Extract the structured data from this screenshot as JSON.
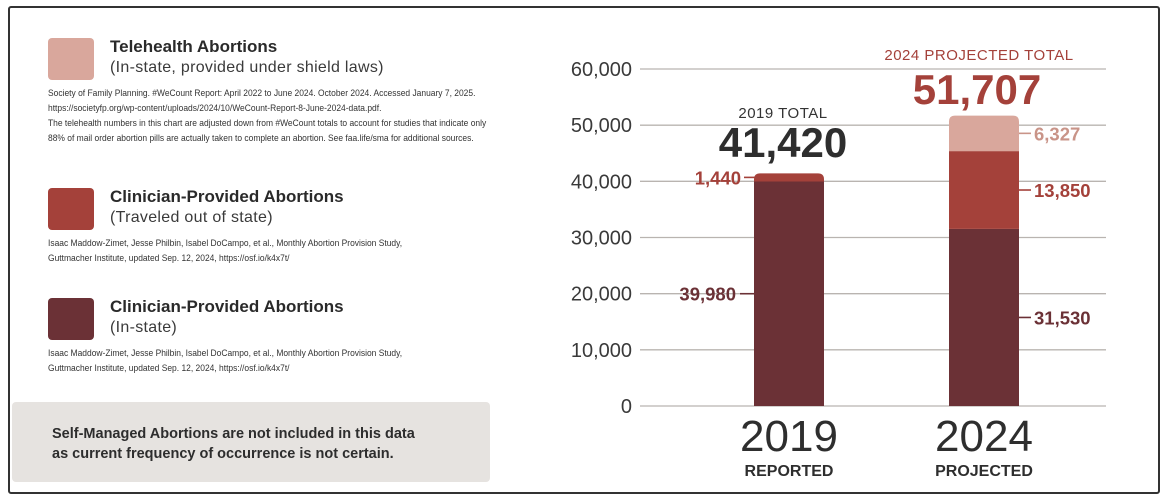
{
  "legend": [
    {
      "title": "Telehealth Abortions",
      "subtitle": "(In-state, provided under shield laws)",
      "color": "#d9a79c",
      "source": [
        "Society of Family Planning. #WeCount Report: April 2022 to June 2024. October 2024. Accessed January 7, 2025.",
        "https://societyfp.org/wp-content/uploads/2024/10/WeCount-Report-8-June-2024-data.pdf.",
        "The telehealth numbers in this chart are adjusted down from #WeCount totals to account for studies that indicate only",
        "88% of mail order abortion pills are actually taken to complete an abortion. See faa.life/sma for additional sources."
      ]
    },
    {
      "title": "Clinician-Provided Abortions",
      "subtitle": "(Traveled out of state)",
      "color": "#a4413a",
      "source": [
        "Isaac Maddow-Zimet, Jesse Philbin, Isabel DoCampo, et al., Monthly Abortion Provision Study,",
        "Guttmacher Institute, updated Sep. 12, 2024, https://osf.io/k4x7t/"
      ]
    },
    {
      "title": "Clinician-Provided Abortions",
      "subtitle": "(In-state)",
      "color": "#6b3136",
      "source": [
        "Isaac Maddow-Zimet, Jesse Philbin, Isabel DoCampo, et al., Monthly Abortion Provision Study,",
        "Guttmacher Institute, updated Sep. 12, 2024, https://osf.io/k4x7t/"
      ]
    }
  ],
  "note": {
    "lines": [
      "Self-Managed Abortions are not included in this data",
      "as current frequency of occurrence is not certain."
    ]
  },
  "chart_data": {
    "type": "bar",
    "stacked": true,
    "categories": [
      "2019",
      "2024"
    ],
    "category_sublabels": [
      "REPORTED",
      "PROJECTED"
    ],
    "ylim": [
      0,
      60000
    ],
    "yticks": [
      "0",
      "10,000",
      "20,000",
      "30,000",
      "40,000",
      "50,000",
      "60,000"
    ],
    "ytick_values": [
      0,
      10000,
      20000,
      30000,
      40000,
      50000,
      60000
    ],
    "grid": true,
    "totals": [
      {
        "label": "2019 TOTAL",
        "value": "41,420",
        "total": 41420
      },
      {
        "label": "2024 PROJECTED TOTAL",
        "value": "51,707",
        "total": 51707
      }
    ],
    "series": [
      {
        "values": [
          39980,
          31530
        ],
        "labels": [
          "39,980",
          "31,530"
        ],
        "color": "#6b3136",
        "label_color": "#6b3136"
      },
      {
        "values": [
          1440,
          13850
        ],
        "labels": [
          "1,440",
          "13,850"
        ],
        "color": "#a4413a",
        "label_color": "#a4413a"
      },
      {
        "values": [
          0,
          6327
        ],
        "labels": [
          "",
          "6,327"
        ],
        "color": "#d9a79c",
        "label_color": "#c99488"
      }
    ]
  }
}
